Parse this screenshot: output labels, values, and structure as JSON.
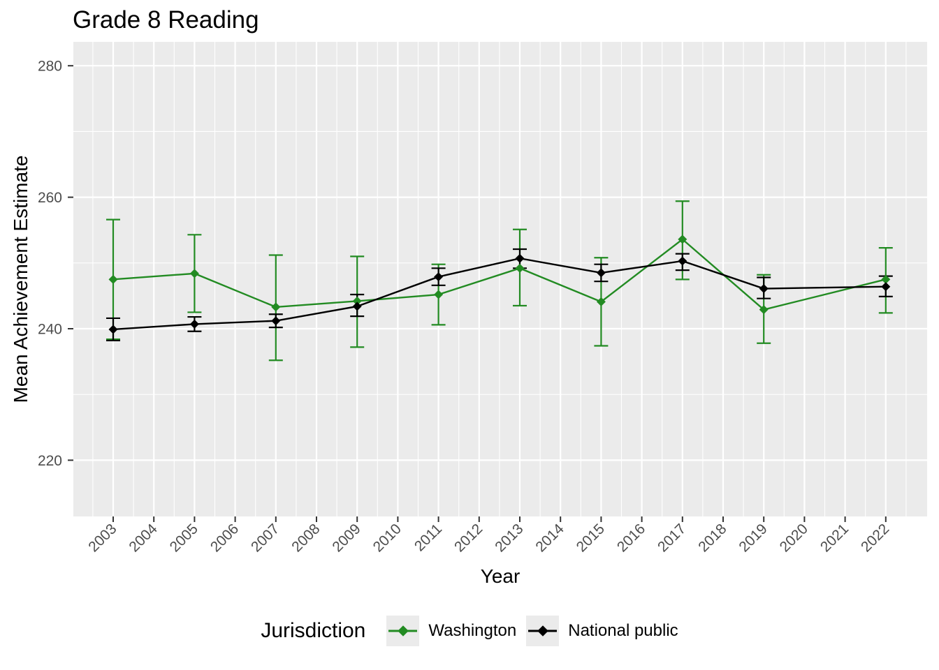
{
  "colors": {
    "washington_green": "#228B22",
    "national_black": "#000000",
    "panel_background": "#EBEBEB",
    "gridline": "#FFFFFF",
    "tick_label_text": "#4D4D4D",
    "tick_mark": "#333333",
    "title_text": "#000000",
    "legend_key_background": "#EBEBEB"
  },
  "chart_data": {
    "type": "line",
    "title": "Grade 8 Reading",
    "xlabel": "Year",
    "ylabel": "Mean Achievement Estimate",
    "xlim": [
      2002,
      2023
    ],
    "ylim": [
      211.5,
      283.5
    ],
    "x_ticks": [
      2003,
      2004,
      2005,
      2006,
      2007,
      2008,
      2009,
      2010,
      2011,
      2012,
      2013,
      2014,
      2015,
      2016,
      2017,
      2018,
      2019,
      2020,
      2021,
      2022
    ],
    "y_ticks": [
      220,
      240,
      260,
      280
    ],
    "y_minor_gridlines": [
      230,
      250,
      270
    ],
    "grid": "white major and minor gridlines on gray panel",
    "error_bars": true,
    "legend": {
      "title": "Jurisdiction",
      "position": "bottom"
    },
    "series": [
      {
        "name": "Washington",
        "color": "#228B22",
        "marker": "diamond",
        "x": [
          2003,
          2005,
          2007,
          2009,
          2011,
          2013,
          2015,
          2017,
          2019,
          2022
        ],
        "values": [
          247.5,
          248.4,
          243.3,
          244.2,
          245.2,
          249.2,
          244.1,
          253.6,
          242.9,
          247.5
        ],
        "ci_low": [
          238.4,
          242.5,
          235.2,
          237.2,
          240.6,
          243.5,
          237.4,
          247.5,
          237.8,
          242.4
        ],
        "ci_high": [
          256.6,
          254.3,
          251.2,
          251.0,
          249.8,
          255.1,
          250.8,
          259.4,
          248.2,
          252.3
        ]
      },
      {
        "name": "National public",
        "color": "#000000",
        "marker": "diamond",
        "x": [
          2003,
          2005,
          2007,
          2009,
          2011,
          2013,
          2015,
          2017,
          2019,
          2022
        ],
        "values": [
          239.9,
          240.7,
          241.2,
          243.4,
          247.9,
          250.7,
          248.5,
          250.3,
          246.1,
          246.4
        ],
        "ci_low": [
          238.2,
          239.6,
          240.2,
          241.9,
          246.6,
          249.2,
          247.2,
          248.9,
          244.6,
          244.9
        ],
        "ci_high": [
          241.6,
          241.8,
          242.2,
          245.2,
          249.2,
          252.1,
          249.8,
          251.4,
          247.8,
          248.0
        ]
      }
    ]
  }
}
